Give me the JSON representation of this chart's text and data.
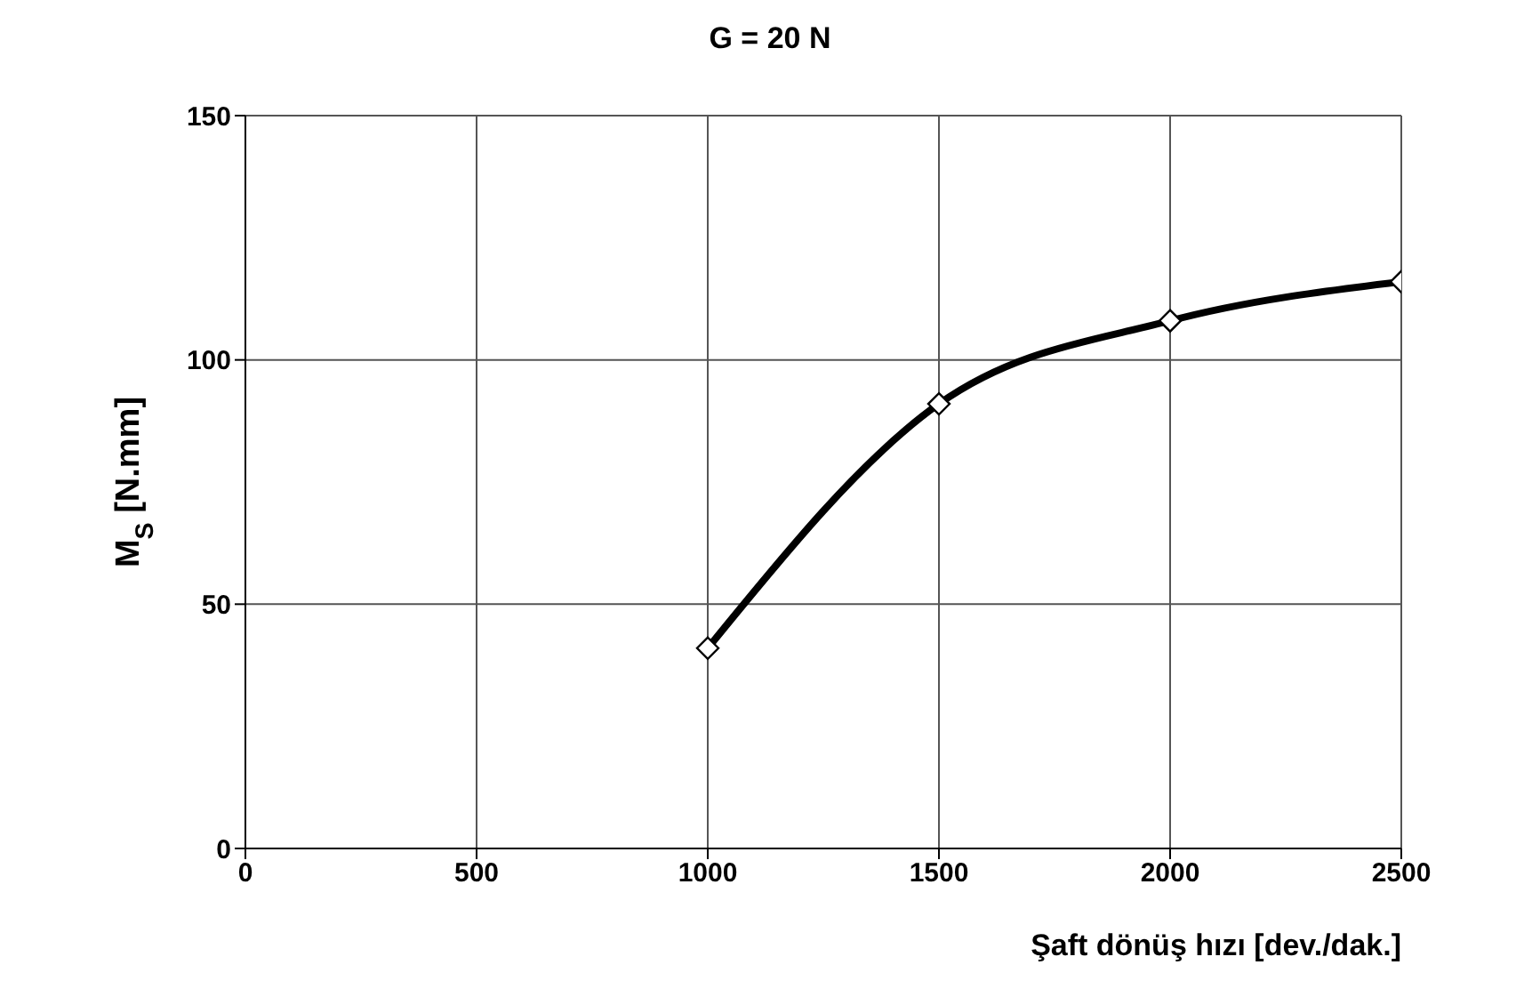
{
  "chart_data": {
    "type": "line",
    "title": "G = 20 N",
    "xlabel": "Şaft dönüş hızı [dev./dak.]",
    "ylabel": "M$_{S}$  [N.mm]",
    "x": [
      1000,
      1500,
      2000,
      2500
    ],
    "series": [
      {
        "color": "#000000",
        "values": [
          41,
          91,
          108,
          116
        ]
      }
    ],
    "xlim": [
      0,
      2500
    ],
    "xticks": [
      0,
      500,
      1000,
      1500,
      2000,
      2500
    ],
    "ylim": [
      0,
      150
    ],
    "yticks": [
      0,
      50,
      100,
      150
    ],
    "grid": true,
    "marker": "diamond",
    "line_style": "solid",
    "legend": false
  }
}
